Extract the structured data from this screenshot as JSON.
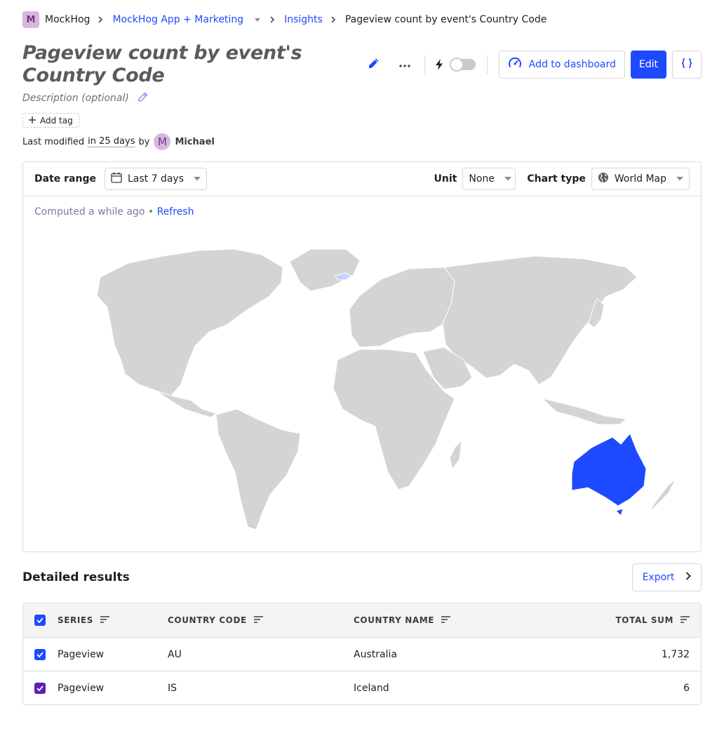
{
  "breadcrumbs": {
    "org_initial": "M",
    "org": "MockHog",
    "project": "MockHog App + Marketing",
    "section": "Insights",
    "current": "Pageview count by event's Country Code"
  },
  "insight": {
    "title": "Pageview count by event's Country Code",
    "description_placeholder": "Description (optional)",
    "add_tag_label": "Add tag",
    "modified_prefix": "Last modified",
    "modified_ago": "in 25 days",
    "modified_by": "by",
    "user_initial": "M",
    "user_name": "Michael"
  },
  "actions": {
    "add_to_dashboard": "Add to dashboard",
    "edit": "Edit"
  },
  "filters": {
    "date_range_label": "Date range",
    "date_range_value": "Last 7 days",
    "unit_label": "Unit",
    "unit_value": "None",
    "chart_type_label": "Chart type",
    "chart_type_value": "World Map"
  },
  "status": {
    "computed": "Computed a while ago",
    "bullet": "•",
    "refresh": "Refresh"
  },
  "results": {
    "title": "Detailed results",
    "export_label": "Export",
    "columns": [
      "SERIES",
      "COUNTRY CODE",
      "COUNTRY NAME",
      "TOTAL SUM"
    ],
    "rows": [
      {
        "series": "Pageview",
        "code": "AU",
        "name": "Australia",
        "total": "1,732"
      },
      {
        "series": "Pageview",
        "code": "IS",
        "name": "Iceland",
        "total": "6"
      }
    ]
  },
  "colors": {
    "accent": "#1d4aff",
    "land": "#d4d4d4",
    "highlight_high": "#1d4aff",
    "highlight_low": "#c7d2fe",
    "row2_checkbox": "#5b21b6"
  }
}
